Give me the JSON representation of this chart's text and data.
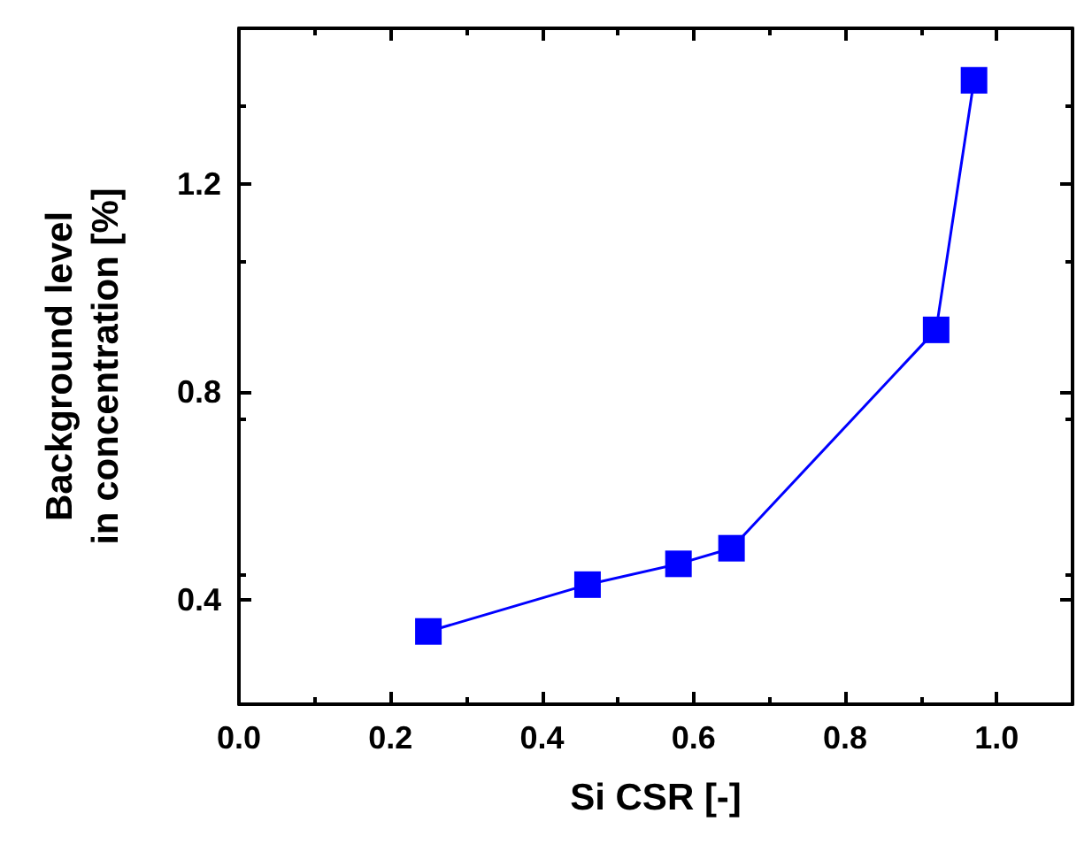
{
  "chart_data": {
    "type": "line",
    "xlabel": "Si CSR [-]",
    "ylabel": "Background level\nin concentration [%]",
    "x": [
      0.25,
      0.46,
      0.58,
      0.65,
      0.92,
      0.97
    ],
    "series": [
      {
        "color": "#0000ff",
        "values": [
          0.34,
          0.43,
          0.47,
          0.5,
          0.92,
          1.4
        ]
      }
    ],
    "xlim": [
      0,
      1.1
    ],
    "xticks": [
      {
        "value": 0,
        "label": "0.0"
      },
      0.2,
      0.4,
      0.6,
      0.8,
      {
        "value": 1,
        "label": "1.0"
      }
    ],
    "ylim": [
      0.2,
      1.5
    ],
    "yticks": [
      0.4,
      0.8,
      1.2
    ],
    "marker": "square",
    "line_style": "solid"
  }
}
